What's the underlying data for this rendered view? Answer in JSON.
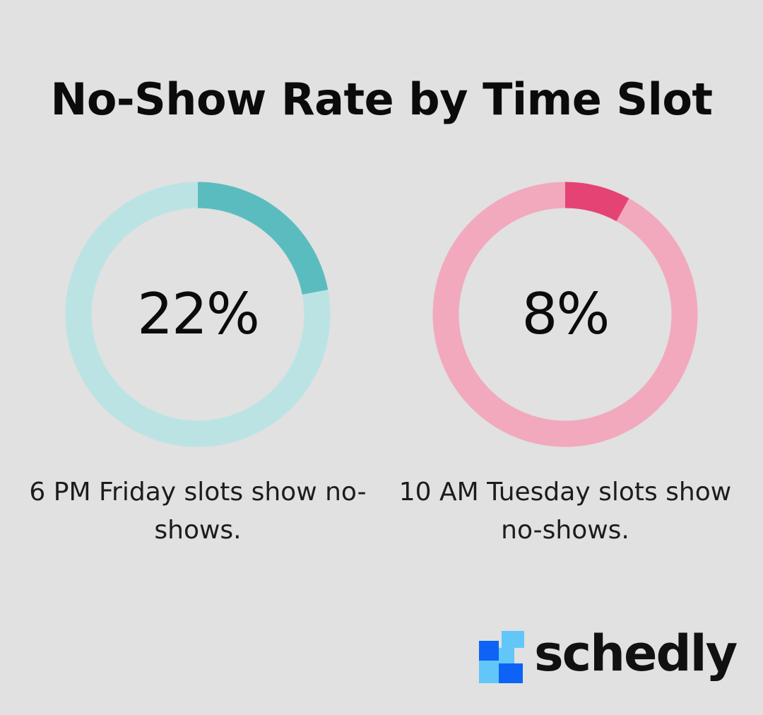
{
  "title": "No-Show Rate by Time Slot",
  "chart_data": [
    {
      "type": "pie",
      "value": 22,
      "value_label": "22%",
      "caption": "6 PM Friday slots show no-shows.",
      "colors": {
        "fill": "#5bbcbf",
        "track": "#bbe3e4"
      }
    },
    {
      "type": "pie",
      "value": 8,
      "value_label": "8%",
      "caption": "10 AM Tuesday slots show no-shows.",
      "colors": {
        "fill": "#e44474",
        "track": "#f2a9bd"
      }
    }
  ],
  "logo": {
    "text": "schedly",
    "colors": {
      "dark": "#0d63f5",
      "light": "#62c7f8",
      "text": "#111111"
    }
  },
  "background": "#e0e1e0"
}
